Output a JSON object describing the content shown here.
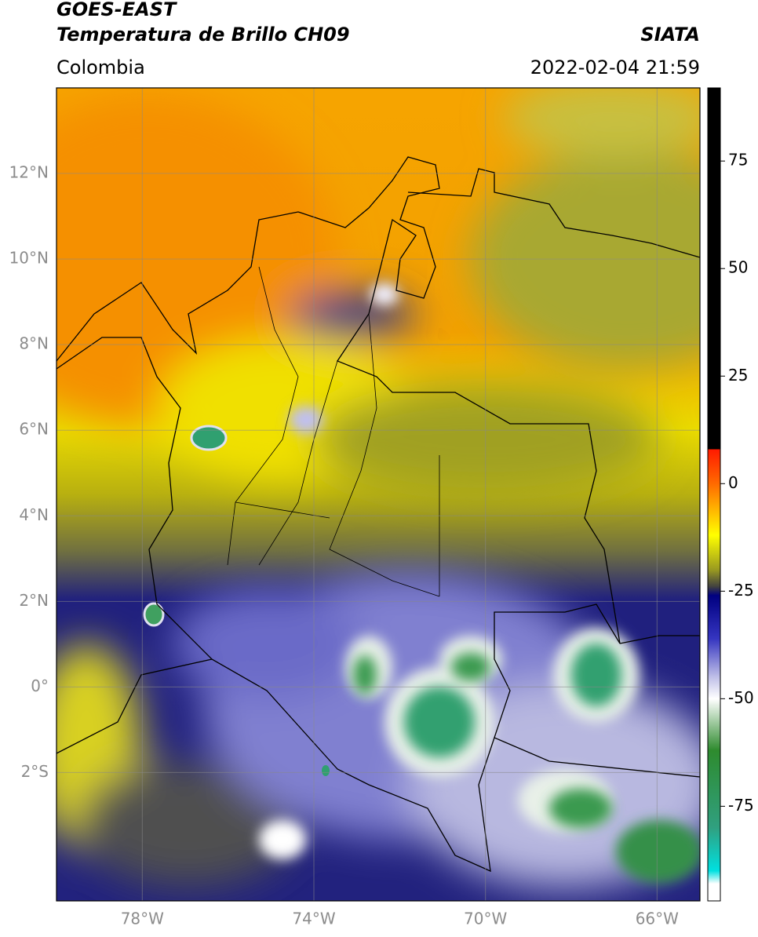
{
  "header": {
    "title": "GOES-EAST",
    "subtitle": "Temperatura de Brillo CH09",
    "source": "SIATA",
    "region": "Colombia",
    "datetime": "2022-02-04 21:59"
  },
  "map": {
    "lonlim": [
      -80,
      -65
    ],
    "latlim": [
      -5,
      14
    ],
    "grid": true,
    "lonticks": [
      {
        "value": -78,
        "label": "78°W"
      },
      {
        "value": -74,
        "label": "74°W"
      },
      {
        "value": -70,
        "label": "70°W"
      },
      {
        "value": -66,
        "label": "66°W"
      }
    ],
    "latticks": [
      {
        "value": 12,
        "label": "12°N"
      },
      {
        "value": 10,
        "label": "10°N"
      },
      {
        "value": 8,
        "label": "8°N"
      },
      {
        "value": 6,
        "label": "6°N"
      },
      {
        "value": 4,
        "label": "4°N"
      },
      {
        "value": 2,
        "label": "2°N"
      },
      {
        "value": 0,
        "label": "0°"
      },
      {
        "value": -2,
        "label": "2°S"
      }
    ]
  },
  "colorbar": {
    "lim": [
      -97,
      92
    ],
    "ticks": [
      75,
      50,
      25,
      0,
      -25,
      -50,
      -75
    ],
    "stops": [
      {
        "value": 92,
        "color": "#000000"
      },
      {
        "value": 8,
        "color": "#000000"
      },
      {
        "value": 8,
        "color": "#ff1a00"
      },
      {
        "value": 0,
        "color": "#ff6a00"
      },
      {
        "value": -12,
        "color": "#ffff00"
      },
      {
        "value": -20,
        "color": "#9a9a20"
      },
      {
        "value": -24,
        "color": "#404040"
      },
      {
        "value": -26,
        "color": "#000080"
      },
      {
        "value": -36,
        "color": "#3535c0"
      },
      {
        "value": -45,
        "color": "#c0c0e8"
      },
      {
        "value": -50,
        "color": "#ffffff"
      },
      {
        "value": -62,
        "color": "#2e8b2e"
      },
      {
        "value": -80,
        "color": "#30a080"
      },
      {
        "value": -90,
        "color": "#00e0e0"
      },
      {
        "value": -93,
        "color": "#ffffff"
      },
      {
        "value": -97,
        "color": "#ffffff"
      }
    ]
  }
}
